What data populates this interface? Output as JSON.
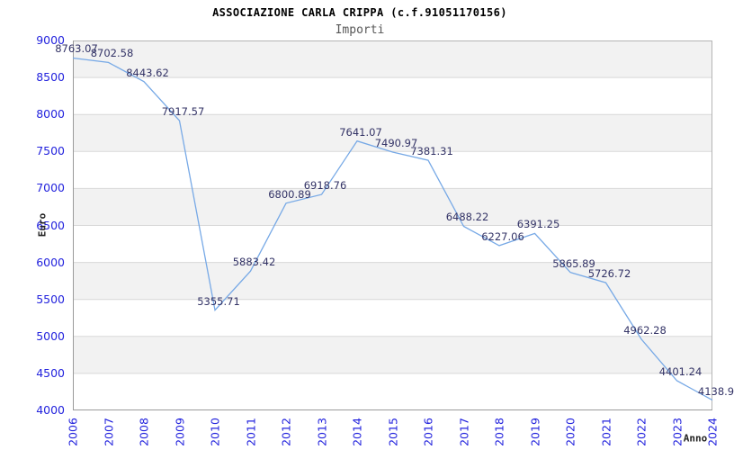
{
  "chart_data": {
    "type": "line",
    "title": "ASSOCIAZIONE CARLA CRIPPA (c.f.91051170156)",
    "subtitle": "Importi",
    "xlabel": "Anno",
    "ylabel": "Euro",
    "categories": [
      "2006",
      "2007",
      "2008",
      "2009",
      "2010",
      "2011",
      "2012",
      "2013",
      "2014",
      "2015",
      "2016",
      "2017",
      "2018",
      "2019",
      "2020",
      "2021",
      "2022",
      "2023",
      "2024"
    ],
    "values": [
      8763.07,
      8702.58,
      8443.62,
      7917.57,
      5355.71,
      5883.42,
      6800.89,
      6918.76,
      7641.07,
      7490.97,
      7381.31,
      6488.22,
      6227.06,
      6391.25,
      5865.89,
      5726.72,
      4962.28,
      4401.24,
      4138.9
    ],
    "point_labels": [
      "8763.07",
      "8702.58",
      "8443.62",
      "7917.57",
      "5355.71",
      "5883.42",
      "6800.89",
      "6918.76",
      "7641.07",
      "7490.97",
      "7381.31",
      "6488.22",
      "6227.06",
      "6391.25",
      "5865.89",
      "5726.72",
      "4962.28",
      "4401.24",
      "4138.9"
    ],
    "ylim": [
      4000,
      9000
    ],
    "ytick_step": 500,
    "yticks": [
      "9000",
      "8500",
      "8000",
      "7500",
      "7000",
      "6500",
      "6000",
      "5500",
      "5000",
      "4500",
      "4000"
    ],
    "grid": "horizontal",
    "background_bands": "alternating",
    "legend": "none",
    "colors": {
      "line": "#77a9e6",
      "tick_label": "#2323dd",
      "value_label": "#333366",
      "band": "#f2f2f2",
      "gridline": "#d8d8d8",
      "plot_border": "#b5b5b5",
      "axis_line": "#9a9a9a",
      "title": "#000000",
      "subtitle": "#575757",
      "axis_title": "#222222"
    }
  }
}
